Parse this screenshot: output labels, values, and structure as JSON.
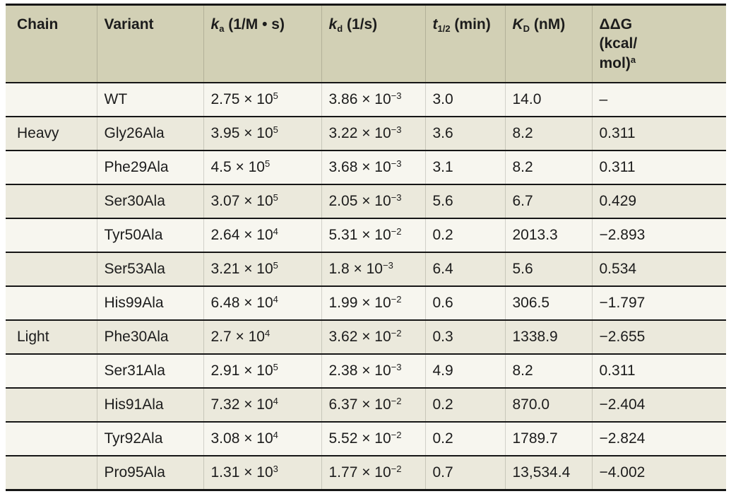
{
  "table": {
    "name": "binding-kinetics-alanine-scan",
    "columns": [
      {
        "id": "chain",
        "label": "Chain"
      },
      {
        "id": "variant",
        "label": "Variant"
      },
      {
        "id": "ka",
        "sym": "k",
        "sub": "a",
        "unit": "(1/M • s)"
      },
      {
        "id": "kd",
        "sym": "k",
        "sub": "d",
        "unit": "(1/s)"
      },
      {
        "id": "thalf",
        "sym": "t",
        "sub": "1/2",
        "unit": "(min)"
      },
      {
        "id": "kD",
        "sym": "K",
        "sub": "D",
        "unit": "(nM)"
      },
      {
        "id": "ddg",
        "lines": [
          "ΔΔG",
          "(kcal/",
          "mol)"
        ],
        "sup": "a"
      }
    ],
    "rows": [
      {
        "chain": "",
        "variant": "WT",
        "ka": "2.75 × 10^5",
        "kd": "3.86 × 10^−3",
        "thalf": "3.0",
        "kD": "14.0",
        "ddg": "–"
      },
      {
        "chain": "Heavy",
        "variant": "Gly26Ala",
        "ka": "3.95 × 10^5",
        "kd": "3.22 × 10^−3",
        "thalf": "3.6",
        "kD": "8.2",
        "ddg": "0.311"
      },
      {
        "chain": "",
        "variant": "Phe29Ala",
        "ka": "4.5 × 10^5",
        "kd": "3.68 × 10^−3",
        "thalf": "3.1",
        "kD": "8.2",
        "ddg": "0.311"
      },
      {
        "chain": "",
        "variant": "Ser30Ala",
        "ka": "3.07 × 10^5",
        "kd": "2.05 × 10^−3",
        "thalf": "5.6",
        "kD": "6.7",
        "ddg": "0.429"
      },
      {
        "chain": "",
        "variant": "Tyr50Ala",
        "ka": "2.64 × 10^4",
        "kd": "5.31 × 10^−2",
        "thalf": "0.2",
        "kD": "2013.3",
        "ddg": "−2.893"
      },
      {
        "chain": "",
        "variant": "Ser53Ala",
        "ka": "3.21 × 10^5",
        "kd": "1.8 × 10^−3",
        "thalf": "6.4",
        "kD": "5.6",
        "ddg": "0.534"
      },
      {
        "chain": "",
        "variant": "His99Ala",
        "ka": "6.48 × 10^4",
        "kd": "1.99 × 10^−2",
        "thalf": "0.6",
        "kD": "306.5",
        "ddg": "−1.797"
      },
      {
        "chain": "Light",
        "variant": "Phe30Ala",
        "ka": "2.7 × 10^4",
        "kd": "3.62 × 10^−2",
        "thalf": "0.3",
        "kD": "1338.9",
        "ddg": "−2.655"
      },
      {
        "chain": "",
        "variant": "Ser31Ala",
        "ka": "2.91 × 10^5",
        "kd": "2.38 × 10^−3",
        "thalf": "4.9",
        "kD": "8.2",
        "ddg": "0.311"
      },
      {
        "chain": "",
        "variant": "His91Ala",
        "ka": "7.32 × 10^4",
        "kd": "6.37 × 10^−2",
        "thalf": "0.2",
        "kD": "870.0",
        "ddg": "−2.404"
      },
      {
        "chain": "",
        "variant": "Tyr92Ala",
        "ka": "3.08 × 10^4",
        "kd": "5.52 × 10^−2",
        "thalf": "0.2",
        "kD": "1789.7",
        "ddg": "−2.824"
      },
      {
        "chain": "",
        "variant": "Pro95Ala",
        "ka": "1.31 × 10^3",
        "kd": "1.77 × 10^−2",
        "thalf": "0.7",
        "kD": "13,534.4",
        "ddg": "−4.002"
      }
    ]
  }
}
